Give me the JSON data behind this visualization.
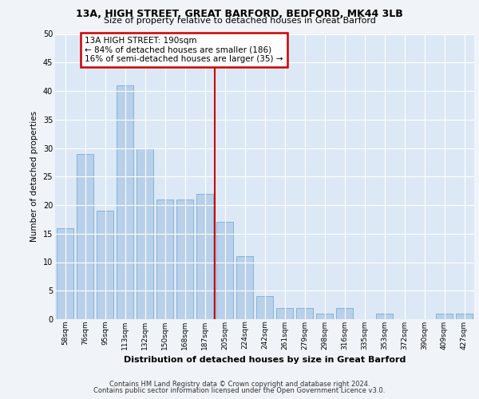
{
  "title1": "13A, HIGH STREET, GREAT BARFORD, BEDFORD, MK44 3LB",
  "title2": "Size of property relative to detached houses in Great Barford",
  "xlabel": "Distribution of detached houses by size in Great Barford",
  "ylabel": "Number of detached properties",
  "categories": [
    "58sqm",
    "76sqm",
    "95sqm",
    "113sqm",
    "132sqm",
    "150sqm",
    "168sqm",
    "187sqm",
    "205sqm",
    "224sqm",
    "242sqm",
    "261sqm",
    "279sqm",
    "298sqm",
    "316sqm",
    "335sqm",
    "353sqm",
    "372sqm",
    "390sqm",
    "409sqm",
    "427sqm"
  ],
  "values": [
    16,
    29,
    19,
    41,
    30,
    21,
    21,
    22,
    17,
    11,
    4,
    2,
    2,
    1,
    2,
    0,
    1,
    0,
    0,
    1,
    1
  ],
  "bar_color": "#b8d0ea",
  "bar_edge_color": "#7aadd4",
  "background_color": "#dce8f5",
  "grid_color": "#ffffff",
  "ylim": [
    0,
    50
  ],
  "yticks": [
    0,
    5,
    10,
    15,
    20,
    25,
    30,
    35,
    40,
    45,
    50
  ],
  "property_line_x": 7.5,
  "annotation_line1": "13A HIGH STREET: 190sqm",
  "annotation_line2": "← 84% of detached houses are smaller (186)",
  "annotation_line3": "16% of semi-detached houses are larger (35) →",
  "annotation_box_color": "#ffffff",
  "annotation_border_color": "#cc0000",
  "vline_color": "#cc0000",
  "footer1": "Contains HM Land Registry data © Crown copyright and database right 2024.",
  "footer2": "Contains public sector information licensed under the Open Government Licence v3.0."
}
